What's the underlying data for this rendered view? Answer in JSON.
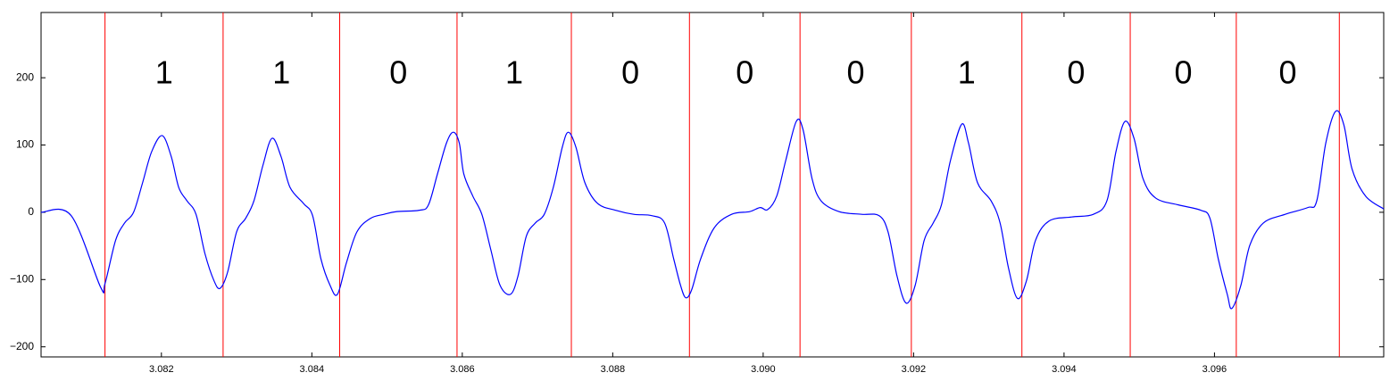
{
  "chart_data": {
    "type": "line",
    "x": [
      3.0804,
      3.0808,
      3.08119,
      3.08125,
      3.08139,
      3.08151,
      3.08163,
      3.08175,
      3.08187,
      3.08201,
      3.08213,
      3.08223,
      3.08234,
      3.08246,
      3.08258,
      3.0827,
      3.08278,
      3.08288,
      3.083,
      3.08312,
      3.08323,
      3.08335,
      3.08347,
      3.08359,
      3.08371,
      3.08389,
      3.08401,
      3.08412,
      3.08424,
      3.08434,
      3.08446,
      3.0846,
      3.08478,
      3.08496,
      3.08513,
      3.08543,
      3.08555,
      3.08567,
      3.08579,
      3.08588,
      3.08596,
      3.08602,
      3.08614,
      3.08626,
      3.08638,
      3.0865,
      3.08664,
      3.08674,
      3.08685,
      3.08697,
      3.08709,
      3.08721,
      3.08733,
      3.08741,
      3.08751,
      3.08763,
      3.0878,
      3.08804,
      3.08828,
      3.08852,
      3.08869,
      3.08881,
      3.0889,
      3.08897,
      3.08905,
      3.08917,
      3.08935,
      3.08958,
      3.08982,
      3.08996,
      3.09006,
      3.09018,
      3.0903,
      3.09044,
      3.09053,
      3.09065,
      3.09077,
      3.09101,
      3.09131,
      3.09154,
      3.09166,
      3.09178,
      3.0919,
      3.09202,
      3.09214,
      3.09226,
      3.09237,
      3.09249,
      3.09264,
      3.09273,
      3.09285,
      3.09303,
      3.09315,
      3.09326,
      3.09338,
      3.0935,
      3.09362,
      3.0938,
      3.0941,
      3.09439,
      3.09457,
      3.09469,
      3.09481,
      3.09493,
      3.09505,
      3.09522,
      3.09552,
      3.09582,
      3.09594,
      3.09605,
      3.09617,
      3.09623,
      3.09635,
      3.09647,
      3.09665,
      3.09694,
      3.09724,
      3.09736,
      3.09748,
      3.09761,
      3.09772,
      3.09783,
      3.09801,
      3.09825
    ],
    "series": [
      {
        "color": "#0000ff",
        "values": [
          0,
          -5,
          -111,
          -106,
          -42,
          -16,
          0,
          44,
          90,
          114,
          83,
          37,
          17,
          -3,
          -62,
          -102,
          -113,
          -89,
          -29,
          -9,
          17,
          70,
          110,
          83,
          37,
          13,
          -5,
          -69,
          -108,
          -122,
          -75,
          -29,
          -9,
          -3,
          1,
          3,
          11,
          57,
          103,
          119,
          103,
          57,
          24,
          -3,
          -56,
          -108,
          -122,
          -95,
          -36,
          -16,
          -3,
          37,
          97,
          119,
          97,
          44,
          13,
          3,
          -3,
          -5,
          -16,
          -69,
          -108,
          -127,
          -115,
          -69,
          -23,
          -3,
          1,
          7,
          4,
          24,
          77,
          135,
          123,
          50,
          17,
          1,
          -3,
          -5,
          -29,
          -95,
          -135,
          -109,
          -42,
          -16,
          11,
          77,
          131,
          103,
          44,
          17,
          -16,
          -82,
          -128,
          -102,
          -42,
          -13,
          -7,
          -3,
          17,
          90,
          135,
          110,
          50,
          21,
          11,
          3,
          -9,
          -69,
          -122,
          -143,
          -109,
          -49,
          -16,
          -3,
          7,
          17,
          103,
          150,
          130,
          64,
          24,
          5
        ]
      }
    ],
    "vlines": {
      "color": "#ff0000",
      "x": [
        3.08125,
        3.08282,
        3.08437,
        3.08593,
        3.08745,
        3.08902,
        3.09049,
        3.09197,
        3.09344,
        3.09488,
        3.09629,
        3.09766
      ]
    },
    "bit_labels": [
      "1",
      "1",
      "0",
      "1",
      "0",
      "0",
      "0",
      "1",
      "0",
      "0",
      "0"
    ],
    "xlim": [
      3.0804,
      3.09825
    ],
    "ylim": [
      -215,
      297
    ],
    "xticks": [
      3.082,
      3.084,
      3.086,
      3.088,
      {
        "value": 3.09,
        "label": "3.090"
      },
      3.092,
      3.094,
      3.096
    ],
    "yticks": [
      {
        "value": -200,
        "label": "−200"
      },
      {
        "value": -100,
        "label": "−100"
      },
      0,
      100,
      200
    ]
  }
}
